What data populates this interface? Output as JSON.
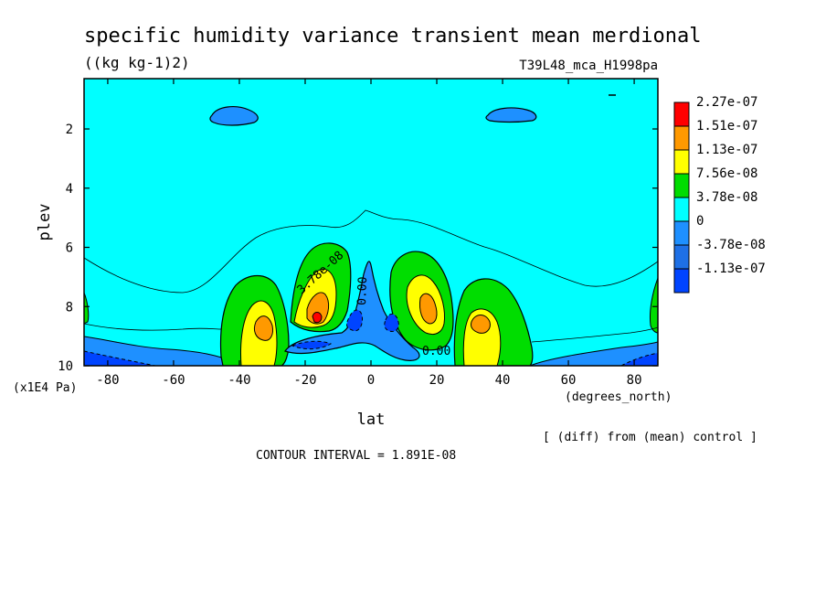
{
  "chart_data": {
    "type": "heatmap",
    "title": "specific humidity variance transient mean merdional",
    "units": "((kg kg-1)2)",
    "run_label": "T39L48_mca_H1998pa",
    "xlabel": "lat",
    "x_units": "(degrees_north)",
    "ylabel": "plev",
    "y_units": "(x1E4 Pa)",
    "x_ticks": [
      "-80",
      "-60",
      "-40",
      "-20",
      "0",
      "20",
      "40",
      "60",
      "80"
    ],
    "x_tick_values": [
      -80,
      -60,
      -40,
      -20,
      0,
      20,
      40,
      60,
      80
    ],
    "y_ticks": [
      "2",
      "4",
      "6",
      "8",
      "10"
    ],
    "y_tick_values": [
      2,
      4,
      6,
      8,
      10
    ],
    "xlim": [
      -87.2,
      87.2
    ],
    "ylim": [
      10,
      0.3
    ],
    "legend_labels": [
      "2.27e-07",
      "1.51e-07",
      "1.13e-07",
      "7.56e-08",
      "3.78e-08",
      "0",
      "-3.78e-08",
      "-1.13e-07"
    ],
    "legend_colors": [
      "#ff0000",
      "#ff9900",
      "#ffff00",
      "#00dd00",
      "#00ffff",
      "#1e90ff",
      "#1e70e6",
      "#0044ff"
    ],
    "contour_labels": [
      "3.78e-08",
      "0.00",
      "0.00"
    ],
    "footer_note": "[ (diff) from (mean) control ]",
    "contour_interval": "CONTOUR INTERVAL = 1.891E-08",
    "colors": {
      "background": "#00ffff",
      "neg_blue": "#1e90ff",
      "deep_blue": "#0044ff",
      "green": "#00dd00",
      "yellow": "#ffff00",
      "orange": "#ff9900",
      "red": "#ff0000"
    },
    "features": [
      {
        "kind": "max",
        "lat": -33,
        "plev": 8.5,
        "level": "orange"
      },
      {
        "kind": "max",
        "lat": -17,
        "plev": 8.4,
        "level": "red"
      },
      {
        "kind": "max",
        "lat": 18,
        "plev": 8.3,
        "level": "orange"
      },
      {
        "kind": "max",
        "lat": 33,
        "plev": 8.6,
        "level": "orange"
      },
      {
        "kind": "min",
        "lat": -5,
        "plev": 8.4,
        "level": "deep_blue"
      },
      {
        "kind": "min",
        "lat": 7,
        "plev": 8.4,
        "level": "deep_blue"
      },
      {
        "kind": "min",
        "lat": -42,
        "plev": 1.4,
        "level": "neg_blue"
      },
      {
        "kind": "min",
        "lat": 42,
        "plev": 1.4,
        "level": "neg_blue"
      }
    ]
  }
}
